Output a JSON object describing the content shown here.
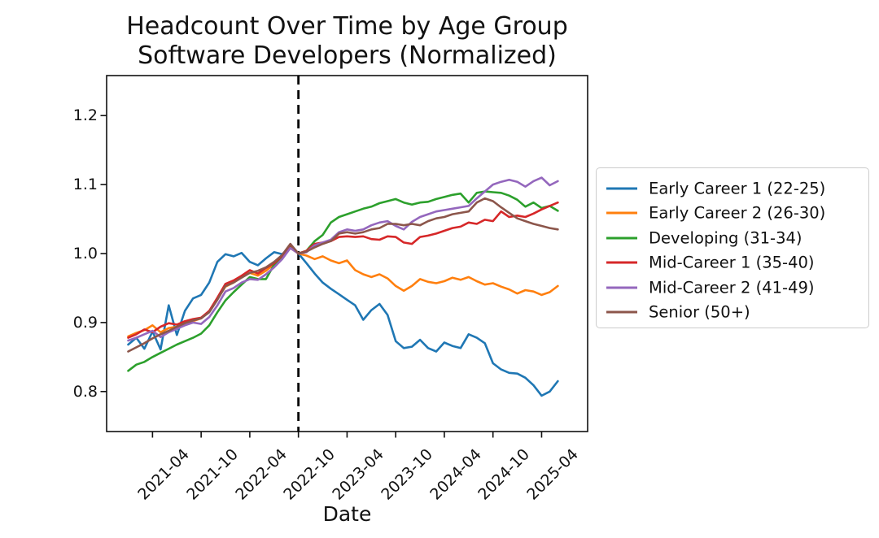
{
  "chart_data": {
    "type": "line",
    "title": "Headcount Over Time by Age Group\nSoftware Developers (Normalized)",
    "xlabel": "Date",
    "ylabel": "",
    "grid": false,
    "legend_position": "right of plot",
    "ylim": [
      0.742,
      1.258
    ],
    "yticks": [
      0.8,
      0.9,
      1.0,
      1.1,
      1.2
    ],
    "xticks": [
      "2021-04",
      "2021-10",
      "2022-04",
      "2022-10",
      "2023-04",
      "2023-10",
      "2024-04",
      "2024-10",
      "2025-04"
    ],
    "vline": {
      "x": "2022-10",
      "style": "dashed",
      "color": "#000000",
      "note": "normalization point, all series = 1.0"
    },
    "x": [
      "2021-01",
      "2021-02",
      "2021-03",
      "2021-04",
      "2021-05",
      "2021-06",
      "2021-07",
      "2021-08",
      "2021-09",
      "2021-10",
      "2021-11",
      "2021-12",
      "2022-01",
      "2022-02",
      "2022-03",
      "2022-04",
      "2022-05",
      "2022-06",
      "2022-07",
      "2022-08",
      "2022-09",
      "2022-10",
      "2022-11",
      "2022-12",
      "2023-01",
      "2023-02",
      "2023-03",
      "2023-04",
      "2023-05",
      "2023-06",
      "2023-07",
      "2023-08",
      "2023-09",
      "2023-10",
      "2023-11",
      "2023-12",
      "2024-01",
      "2024-02",
      "2024-03",
      "2024-04",
      "2024-05",
      "2024-06",
      "2024-07",
      "2024-08",
      "2024-09",
      "2024-10",
      "2024-11",
      "2024-12",
      "2025-01",
      "2025-02",
      "2025-03",
      "2025-04",
      "2025-05",
      "2025-06"
    ],
    "series": [
      {
        "name": "Early Career 1 (22-25)",
        "color": "#1f77b4",
        "values": [
          0.868,
          0.878,
          0.862,
          0.887,
          0.861,
          0.925,
          0.882,
          0.917,
          0.935,
          0.94,
          0.958,
          0.988,
          0.999,
          0.996,
          1.001,
          0.988,
          0.983,
          0.993,
          1.002,
          0.999,
          1.009,
          1.0,
          0.986,
          0.971,
          0.958,
          0.949,
          0.941,
          0.933,
          0.925,
          0.904,
          0.918,
          0.927,
          0.911,
          0.873,
          0.863,
          0.865,
          0.875,
          0.863,
          0.858,
          0.871,
          0.866,
          0.863,
          0.883,
          0.878,
          0.87,
          0.841,
          0.832,
          0.827,
          0.826,
          0.82,
          0.809,
          0.794,
          0.8,
          0.815
        ]
      },
      {
        "name": "Early Career 2 (26-30)",
        "color": "#ff7f0e",
        "values": [
          0.88,
          0.885,
          0.889,
          0.896,
          0.886,
          0.892,
          0.894,
          0.9,
          0.902,
          0.906,
          0.916,
          0.934,
          0.952,
          0.958,
          0.966,
          0.972,
          0.968,
          0.975,
          0.985,
          0.993,
          1.008,
          1.0,
          0.997,
          0.992,
          0.996,
          0.99,
          0.986,
          0.99,
          0.976,
          0.97,
          0.966,
          0.97,
          0.964,
          0.953,
          0.946,
          0.953,
          0.963,
          0.959,
          0.957,
          0.96,
          0.965,
          0.962,
          0.966,
          0.96,
          0.955,
          0.957,
          0.952,
          0.948,
          0.942,
          0.947,
          0.945,
          0.94,
          0.944,
          0.953
        ]
      },
      {
        "name": "Developing (31-34)",
        "color": "#2ca02c",
        "values": [
          0.83,
          0.839,
          0.843,
          0.85,
          0.856,
          0.862,
          0.868,
          0.873,
          0.878,
          0.884,
          0.896,
          0.915,
          0.932,
          0.944,
          0.955,
          0.966,
          0.963,
          0.963,
          0.984,
          0.994,
          1.01,
          1.0,
          1.004,
          1.018,
          1.027,
          1.045,
          1.053,
          1.057,
          1.061,
          1.065,
          1.068,
          1.073,
          1.076,
          1.079,
          1.074,
          1.071,
          1.074,
          1.075,
          1.079,
          1.082,
          1.085,
          1.087,
          1.074,
          1.088,
          1.09,
          1.089,
          1.088,
          1.084,
          1.078,
          1.068,
          1.074,
          1.066,
          1.069,
          1.062
        ]
      },
      {
        "name": "Mid-Career 1 (35-40)",
        "color": "#d62728",
        "values": [
          0.878,
          0.883,
          0.89,
          0.886,
          0.894,
          0.899,
          0.897,
          0.902,
          0.905,
          0.907,
          0.917,
          0.936,
          0.956,
          0.961,
          0.968,
          0.976,
          0.971,
          0.979,
          0.986,
          0.997,
          1.013,
          1.0,
          1.004,
          1.014,
          1.016,
          1.018,
          1.024,
          1.025,
          1.024,
          1.025,
          1.021,
          1.02,
          1.025,
          1.024,
          1.016,
          1.014,
          1.024,
          1.026,
          1.029,
          1.033,
          1.037,
          1.039,
          1.045,
          1.043,
          1.049,
          1.047,
          1.061,
          1.053,
          1.055,
          1.053,
          1.058,
          1.064,
          1.069,
          1.074
        ]
      },
      {
        "name": "Mid-Career 2 (41-49)",
        "color": "#9467bd",
        "values": [
          0.874,
          0.878,
          0.883,
          0.888,
          0.879,
          0.886,
          0.891,
          0.896,
          0.9,
          0.898,
          0.908,
          0.925,
          0.945,
          0.95,
          0.958,
          0.963,
          0.962,
          0.97,
          0.98,
          0.992,
          1.008,
          1.0,
          1.002,
          1.012,
          1.016,
          1.02,
          1.031,
          1.035,
          1.033,
          1.035,
          1.041,
          1.045,
          1.047,
          1.04,
          1.035,
          1.046,
          1.053,
          1.057,
          1.061,
          1.063,
          1.065,
          1.067,
          1.069,
          1.08,
          1.09,
          1.1,
          1.104,
          1.107,
          1.104,
          1.097,
          1.105,
          1.11,
          1.099,
          1.105
        ]
      },
      {
        "name": "Senior (50+)",
        "color": "#8c564b",
        "values": [
          0.858,
          0.864,
          0.87,
          0.877,
          0.883,
          0.888,
          0.894,
          0.899,
          0.903,
          0.906,
          0.915,
          0.933,
          0.953,
          0.958,
          0.965,
          0.972,
          0.975,
          0.98,
          0.988,
          0.998,
          1.014,
          1.0,
          1.003,
          1.009,
          1.014,
          1.018,
          1.029,
          1.031,
          1.029,
          1.031,
          1.035,
          1.037,
          1.043,
          1.043,
          1.041,
          1.043,
          1.041,
          1.047,
          1.051,
          1.053,
          1.057,
          1.059,
          1.061,
          1.074,
          1.08,
          1.076,
          1.067,
          1.059,
          1.051,
          1.047,
          1.043,
          1.04,
          1.037,
          1.035
        ]
      }
    ]
  }
}
